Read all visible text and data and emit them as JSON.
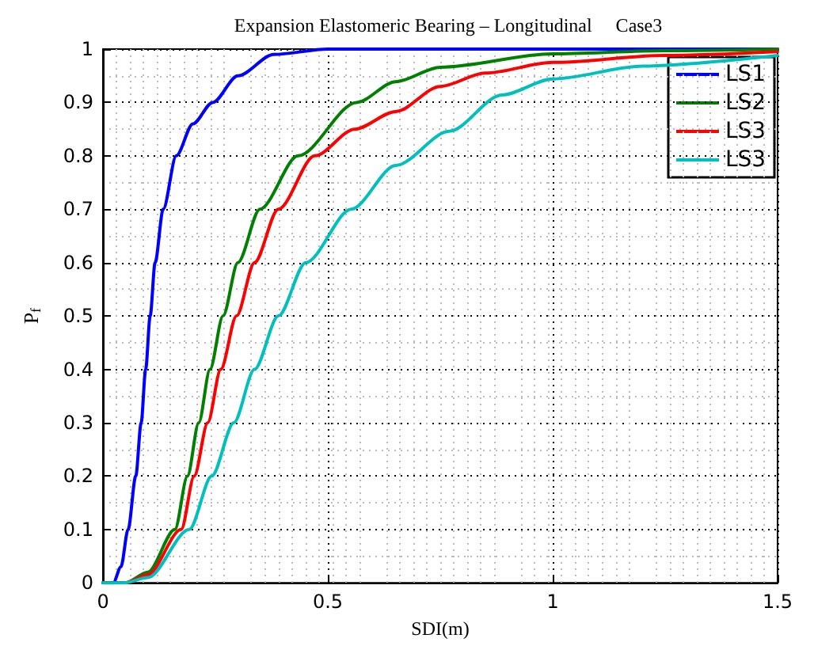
{
  "chart_data": {
    "type": "line",
    "title": "Expansion Elastomeric Bearing – Longitudinal     Case3",
    "xlabel": "SDI(m)",
    "ylabel": "P$_{f}$",
    "xlim": [
      0,
      1.5
    ],
    "xticks": [
      0,
      0.5,
      1,
      1.5
    ],
    "ylim": [
      0,
      1
    ],
    "yticks": [
      0,
      0.1,
      0.2,
      0.3,
      0.4,
      0.5,
      0.6,
      0.7,
      0.8,
      0.9,
      1
    ],
    "grid": true,
    "legend": "top right",
    "marker": "none",
    "line_style": "solid",
    "series": [
      {
        "name": "LS1",
        "color": "#0000ff",
        "x": [
          0,
          0.023,
          0.04,
          0.056,
          0.073,
          0.085,
          0.095,
          0.105,
          0.116,
          0.134,
          0.163,
          0.2,
          0.244,
          0.3,
          0.38,
          0.5,
          0.75,
          1,
          1.5
        ],
        "values": [
          0,
          0,
          0.03,
          0.1,
          0.2,
          0.3,
          0.4,
          0.5,
          0.6,
          0.7,
          0.8,
          0.86,
          0.9,
          0.95,
          0.99,
          1,
          1,
          1,
          1
        ]
      },
      {
        "name": "LS2",
        "color": "#008000",
        "x": [
          0,
          0.05,
          0.1,
          0.16,
          0.188,
          0.213,
          0.238,
          0.267,
          0.3,
          0.349,
          0.434,
          0.564,
          0.651,
          0.75,
          1,
          1.25,
          1.5
        ],
        "values": [
          0,
          0,
          0.02,
          0.1,
          0.2,
          0.3,
          0.4,
          0.5,
          0.6,
          0.7,
          0.8,
          0.9,
          0.939,
          0.966,
          0.991,
          0.997,
          1
        ]
      },
      {
        "name": "LS3",
        "color": "#ff0000",
        "x": [
          0,
          0.05,
          0.1,
          0.174,
          0.203,
          0.233,
          0.262,
          0.297,
          0.337,
          0.39,
          0.471,
          0.56,
          0.651,
          0.75,
          0.85,
          1,
          1.25,
          1.5
        ],
        "values": [
          0,
          0,
          0.015,
          0.1,
          0.2,
          0.3,
          0.4,
          0.5,
          0.6,
          0.7,
          0.8,
          0.85,
          0.883,
          0.93,
          0.955,
          0.975,
          0.988,
          0.995
        ]
      },
      {
        "name": "LS3",
        "color": "#00bfbf",
        "x": [
          0,
          0.047,
          0.1,
          0.192,
          0.242,
          0.291,
          0.337,
          0.39,
          0.451,
          0.552,
          0.651,
          0.77,
          0.887,
          1,
          1.2,
          1.5
        ],
        "values": [
          0,
          0,
          0.01,
          0.1,
          0.2,
          0.3,
          0.4,
          0.5,
          0.6,
          0.7,
          0.782,
          0.846,
          0.914,
          0.944,
          0.968,
          0.988
        ]
      }
    ]
  }
}
